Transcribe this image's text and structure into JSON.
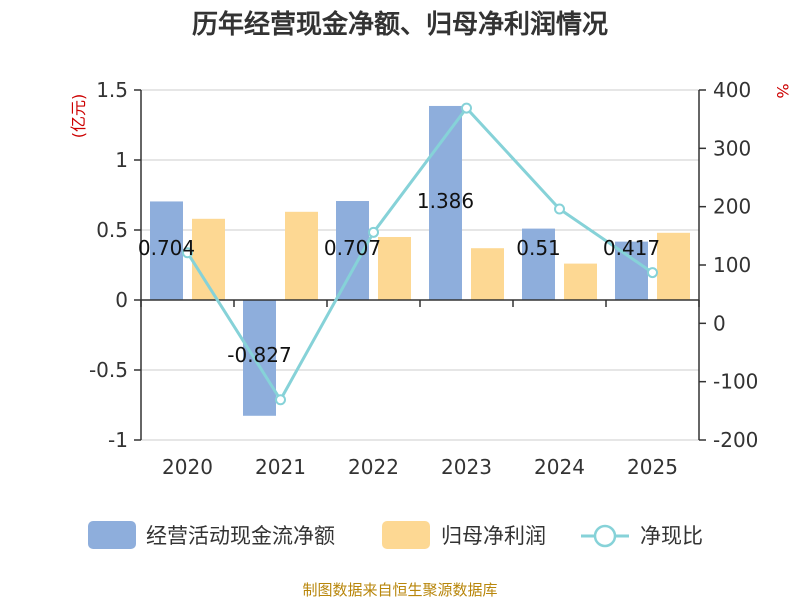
{
  "chart_data": {
    "type": "bar",
    "title": "历年经营现金净额、归母净利润情况",
    "categories": [
      "2020",
      "2021",
      "2022",
      "2023",
      "2024",
      "2025"
    ],
    "series": [
      {
        "name": "经营活动现金流净额",
        "kind": "bar",
        "axis": "left",
        "color": "#8eaedc",
        "values": [
          0.704,
          -0.827,
          0.707,
          1.386,
          0.51,
          0.417
        ],
        "labels": [
          "0.704",
          "-0.827",
          "0.707",
          "1.386",
          "0.51",
          "0.417"
        ]
      },
      {
        "name": "归母净利润",
        "kind": "bar",
        "axis": "left",
        "color": "#fdd893",
        "values": [
          0.58,
          0.63,
          0.45,
          0.37,
          0.26,
          0.48
        ]
      },
      {
        "name": "净现比",
        "kind": "line",
        "axis": "right",
        "color": "#86d2d8",
        "values": [
          121,
          -131,
          156,
          369,
          196,
          87
        ]
      }
    ],
    "left_axis": {
      "unit": "(亿元)",
      "ylim": [
        -1,
        1.5
      ],
      "ticks": [
        1.5,
        1,
        0.5,
        0,
        -0.5,
        -1
      ],
      "tick_labels": [
        "1.5",
        "1",
        "0.5",
        "0",
        "-0.5",
        "-1"
      ]
    },
    "right_axis": {
      "unit": "%",
      "ylim": [
        -200,
        400
      ],
      "ticks": [
        400,
        300,
        200,
        100,
        0,
        -100,
        -200
      ],
      "tick_labels": [
        "400",
        "300",
        "200",
        "100",
        "0",
        "-100",
        "-200"
      ]
    },
    "source": "制图数据来自恒生聚源数据库"
  }
}
